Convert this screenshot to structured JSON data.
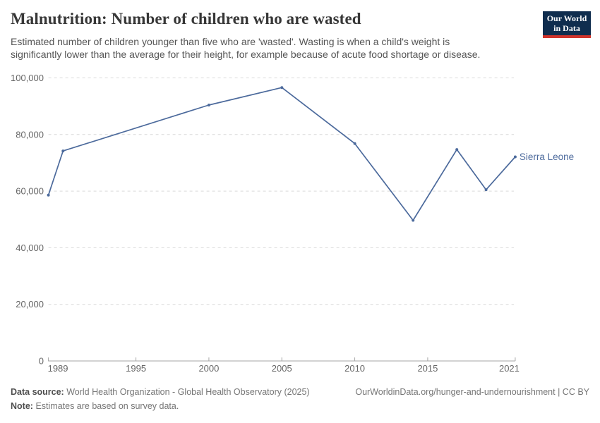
{
  "header": {
    "title": "Malnutrition: Number of children who are wasted",
    "subtitle_line1": "Estimated number of children younger than five who are 'wasted'. Wasting is when a child's weight is",
    "subtitle_line2": "significantly lower than the average for their height, for example because of acute food shortage or disease.",
    "logo": {
      "line1": "Our World",
      "line2": "in Data",
      "bg_color": "#0f2d4e",
      "accent_color": "#d0342c",
      "text_color": "#ffffff"
    }
  },
  "chart_data": {
    "type": "line",
    "title": "Malnutrition: Number of children who are wasted",
    "xlabel": "",
    "ylabel": "",
    "xlim": [
      1989,
      2021
    ],
    "ylim": [
      0,
      100000
    ],
    "grid": "horizontal-dashed",
    "legend_position": "end-of-line-label",
    "x_ticks": [
      1989,
      1995,
      2000,
      2005,
      2010,
      2015,
      2021
    ],
    "x_tick_labels": [
      "1989",
      "1995",
      "2000",
      "2005",
      "2010",
      "2015",
      "2021"
    ],
    "y_ticks": [
      0,
      20000,
      40000,
      60000,
      80000,
      100000
    ],
    "y_tick_labels": [
      "0",
      "20,000",
      "40,000",
      "60,000",
      "80,000",
      "100,000"
    ],
    "series": [
      {
        "name": "Sierra Leone",
        "color": "#4C6A9C",
        "x": [
          1989,
          1990,
          2000,
          2005,
          2010,
          2014,
          2017,
          2019,
          2021
        ],
        "values": [
          58600,
          74200,
          90400,
          96600,
          76800,
          49700,
          74700,
          60500,
          72100
        ]
      }
    ]
  },
  "footer": {
    "data_source_label": "Data source:",
    "data_source_text": "World Health Organization - Global Health Observatory (2025)",
    "note_label": "Note:",
    "note_text": "Estimates are based on survey data.",
    "link_text": "OurWorldinData.org/hunger-and-undernourishment | CC BY"
  },
  "colors": {
    "line": "#4C6A9C",
    "series_label": "#4C6A9C",
    "gridline": "#d9d9d9",
    "axis": "#a6a6a6",
    "tick_label": "#666666",
    "title": "#373737",
    "subtitle": "#555555",
    "footer_label": "#4e4e4e",
    "footer_text": "#757575",
    "background": "#ffffff"
  }
}
